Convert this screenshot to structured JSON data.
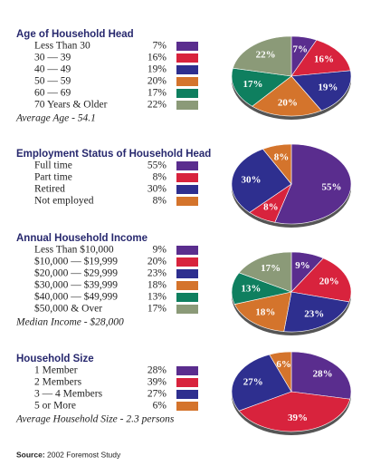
{
  "chart_data": [
    {
      "type": "pie",
      "title": "Age of Household Head",
      "categories": [
        "Less Than 30",
        "30 — 39",
        "40 — 49",
        "50 — 59",
        "60 — 69",
        "70 Years & Older"
      ],
      "values": [
        7,
        16,
        19,
        20,
        17,
        22
      ],
      "value_labels": [
        "7%",
        "16%",
        "19%",
        "20%",
        "17%",
        "22%"
      ],
      "colors": [
        "#5a2d8e",
        "#d8233d",
        "#2e2f8f",
        "#d4742c",
        "#0f7f5f",
        "#8b9a78"
      ],
      "annotation": "Average Age - 54.1"
    },
    {
      "type": "pie",
      "title": "Employment Status of Household Head",
      "categories": [
        "Full time",
        "Part time",
        "Retired",
        "Not employed"
      ],
      "values": [
        55,
        8,
        30,
        8
      ],
      "value_labels": [
        "55%",
        "8%",
        "30%",
        "8%"
      ],
      "colors": [
        "#5a2d8e",
        "#d8233d",
        "#2e2f8f",
        "#d4742c"
      ]
    },
    {
      "type": "pie",
      "title": "Annual Household Income",
      "categories": [
        "Less Than $10,000",
        "$10,000 — $19,999",
        "$20,000 — $29,999",
        "$30,000 — $39,999",
        "$40,000 — $49,999",
        "$50,000 & Over"
      ],
      "values": [
        9,
        20,
        23,
        18,
        13,
        17
      ],
      "value_labels": [
        "9%",
        "20%",
        "23%",
        "18%",
        "13%",
        "17%"
      ],
      "colors": [
        "#5a2d8e",
        "#d8233d",
        "#2e2f8f",
        "#d4742c",
        "#0f7f5f",
        "#8b9a78"
      ],
      "annotation": "Median Income - $28,000"
    },
    {
      "type": "pie",
      "title": "Household Size",
      "categories": [
        "1 Member",
        "2 Members",
        "3 — 4 Members",
        "5 or More"
      ],
      "values": [
        28,
        39,
        27,
        6
      ],
      "value_labels": [
        "28%",
        "39%",
        "27%",
        "6%"
      ],
      "colors": [
        "#5a2d8e",
        "#d8233d",
        "#2e2f8f",
        "#d4742c"
      ],
      "annotation": "Average Household Size - 2.3 persons"
    }
  ],
  "source_label": "Source:",
  "source": "2002 Foremost Study"
}
